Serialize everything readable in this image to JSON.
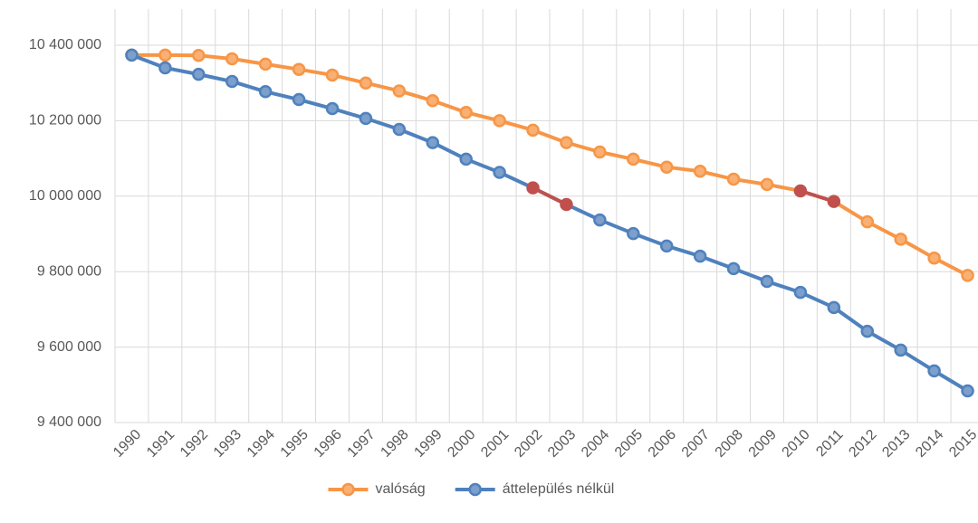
{
  "chart_data": {
    "type": "line",
    "categories": [
      "1990",
      "1991",
      "1992",
      "1993",
      "1994",
      "1995",
      "1996",
      "1997",
      "1998",
      "1999",
      "2000",
      "2001",
      "2002",
      "2003",
      "2004",
      "2005",
      "2006",
      "2007",
      "2008",
      "2009",
      "2010",
      "2011",
      "2012",
      "2013",
      "2014",
      "2015"
    ],
    "series": [
      {
        "name": "valóság",
        "color": "#f79646",
        "marker_fill": "#f9b074",
        "values": [
          10374000,
          10374000,
          10373000,
          10364000,
          10350000,
          10336000,
          10321000,
          10300000,
          10279000,
          10253000,
          10222000,
          10200000,
          10175000,
          10142000,
          10117000,
          10098000,
          10077000,
          10066000,
          10045000,
          10031000,
          10014000,
          9986000,
          9932000,
          9886000,
          9836000,
          9790000
        ],
        "highlight": [
          20,
          21
        ]
      },
      {
        "name": "áttelepülés nélkül",
        "color": "#4f81bd",
        "marker_fill": "#7c9fcb",
        "values": [
          10374000,
          10340000,
          10323000,
          10304000,
          10277000,
          10256000,
          10232000,
          10206000,
          10177000,
          10142000,
          10098000,
          10063000,
          10022000,
          9978000,
          9937000,
          9901000,
          9868000,
          9841000,
          9808000,
          9774000,
          9745000,
          9705000,
          9642000,
          9592000,
          9537000,
          9484000
        ],
        "highlight": [
          12,
          13
        ]
      }
    ],
    "highlight_color": "#c0504d",
    "ylim": [
      9400000,
      10400000
    ],
    "yticks": [
      {
        "value": 9400000,
        "label": "9 400 000"
      },
      {
        "value": 9600000,
        "label": "9 600 000"
      },
      {
        "value": 9800000,
        "label": "9 800 000"
      },
      {
        "value": 10000000,
        "label": "10 000 000"
      },
      {
        "value": 10200000,
        "label": "10 200 000"
      },
      {
        "value": 10400000,
        "label": "10 400 000"
      }
    ],
    "grid": true,
    "legend": "bottom"
  }
}
